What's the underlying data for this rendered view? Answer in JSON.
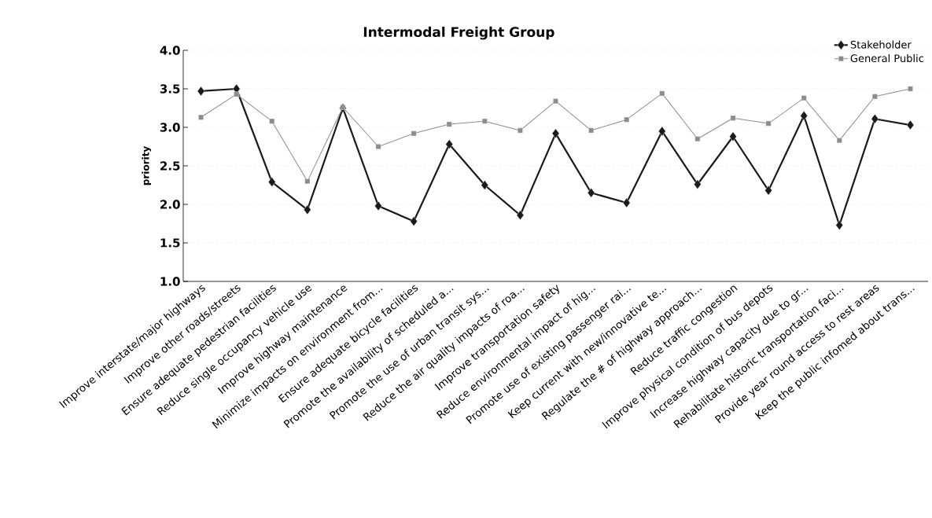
{
  "chart_data": {
    "type": "line",
    "title": "Intermodal Freight Group",
    "ylabel": "priority",
    "categories": [
      "Improve interstate/major highways",
      "Improve other roads/streets",
      "Ensure adequate pedestrian facilities",
      "Reduce single occupancy vehicle use",
      "Improve highway maintenance",
      "Minimize impacts on environment from...",
      "Ensure adequate bicycle facilities",
      "Promote the availability of scheduled a...",
      "Promote the use of urban transit sys...",
      "Reduce the air quality impacts of roa...",
      "Improve transportation safety",
      "Reduce environmental impact of hig...",
      "Promote use of existing passenger rai...",
      "Keep current with new/innovative te...",
      "Regulate the # of highway approach...",
      "Reduce traffic congestion",
      "Improve physical condition of bus depots",
      "Increase highway capacity due to gr...",
      "Rehabilitate historic transportation faci...",
      "Provide year round access to rest areas",
      "Keep the public infomed about trans..."
    ],
    "series": [
      {
        "name": "Stakeholder",
        "color": "#1a1a1a",
        "marker": "diamond",
        "values": [
          3.47,
          3.5,
          2.29,
          1.93,
          3.25,
          1.98,
          1.78,
          2.78,
          2.25,
          1.86,
          2.92,
          2.15,
          2.02,
          2.95,
          2.26,
          2.88,
          2.18,
          3.15,
          1.73,
          3.11,
          3.03
        ]
      },
      {
        "name": "General Public",
        "color": "#8c8c8c",
        "marker": "square",
        "values": [
          3.13,
          3.43,
          3.08,
          2.3,
          3.26,
          2.75,
          2.92,
          3.04,
          3.08,
          2.96,
          3.34,
          2.96,
          3.1,
          3.44,
          2.85,
          3.12,
          3.05,
          3.38,
          2.83,
          3.4,
          3.5
        ]
      }
    ],
    "ylim": [
      1.0,
      4.0
    ],
    "yticks": [
      {
        "value": 1.0,
        "label": "1.0"
      },
      {
        "value": 1.5,
        "label": "1.5"
      },
      {
        "value": 2.0,
        "label": "2.0"
      },
      {
        "value": 2.5,
        "label": "2.5"
      },
      {
        "value": 3.0,
        "label": "3.0"
      },
      {
        "value": 3.5,
        "label": "3.5"
      },
      {
        "value": 4.0,
        "label": "4.0"
      }
    ],
    "grid": "y",
    "legend": "top right",
    "line_style": "solid"
  }
}
